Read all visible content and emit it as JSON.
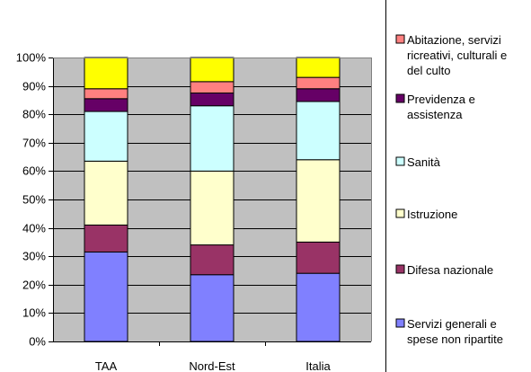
{
  "chart_data": {
    "type": "bar",
    "stacked": true,
    "percent": true,
    "title": "",
    "xlabel": "",
    "ylabel": "",
    "ylim": [
      0,
      100
    ],
    "y_ticks": [
      "0%",
      "10%",
      "20%",
      "30%",
      "40%",
      "50%",
      "60%",
      "70%",
      "80%",
      "90%",
      "100%"
    ],
    "categories": [
      "TAA",
      "Nord-Est",
      "Italia"
    ],
    "grid": true,
    "legend_position": "right",
    "plot_background": "#c0c0c0",
    "series": [
      {
        "name": "Servizi generali e spese non ripartite",
        "color": "#8080ff",
        "values": [
          31.5,
          23.5,
          24
        ]
      },
      {
        "name": "Difesa nazionale",
        "color": "#993366",
        "values": [
          9.5,
          10.5,
          11
        ]
      },
      {
        "name": "Istruzione",
        "color": "#ffffcc",
        "values": [
          22.5,
          26,
          29
        ]
      },
      {
        "name": "Sanità",
        "color": "#ccffff",
        "values": [
          17.5,
          23,
          20.5
        ]
      },
      {
        "name": "Previdenza e assistenza",
        "color": "#660066",
        "values": [
          4.5,
          4.5,
          4.5
        ]
      },
      {
        "name": "Abitazione, servizi ricreativi, culturali e del culto",
        "color": "#ff8080",
        "values": [
          3.5,
          4,
          4
        ]
      },
      {
        "name": "",
        "color": "#ffff00",
        "values": [
          11,
          8.5,
          7
        ]
      }
    ],
    "legend": [
      {
        "lines": [
          "Abitazione, servizi",
          "ricreativi, culturali e",
          "del culto"
        ],
        "series": 5
      },
      {
        "lines": [
          "Previdenza e",
          "assistenza"
        ],
        "series": 4
      },
      {
        "lines": [
          "Sanità"
        ],
        "series": 3
      },
      {
        "lines": [
          "Istruzione"
        ],
        "series": 2
      },
      {
        "lines": [
          "Difesa nazionale"
        ],
        "series": 1
      },
      {
        "lines": [
          "Servizi generali e",
          "spese non ripartite"
        ],
        "series": 0
      }
    ]
  }
}
